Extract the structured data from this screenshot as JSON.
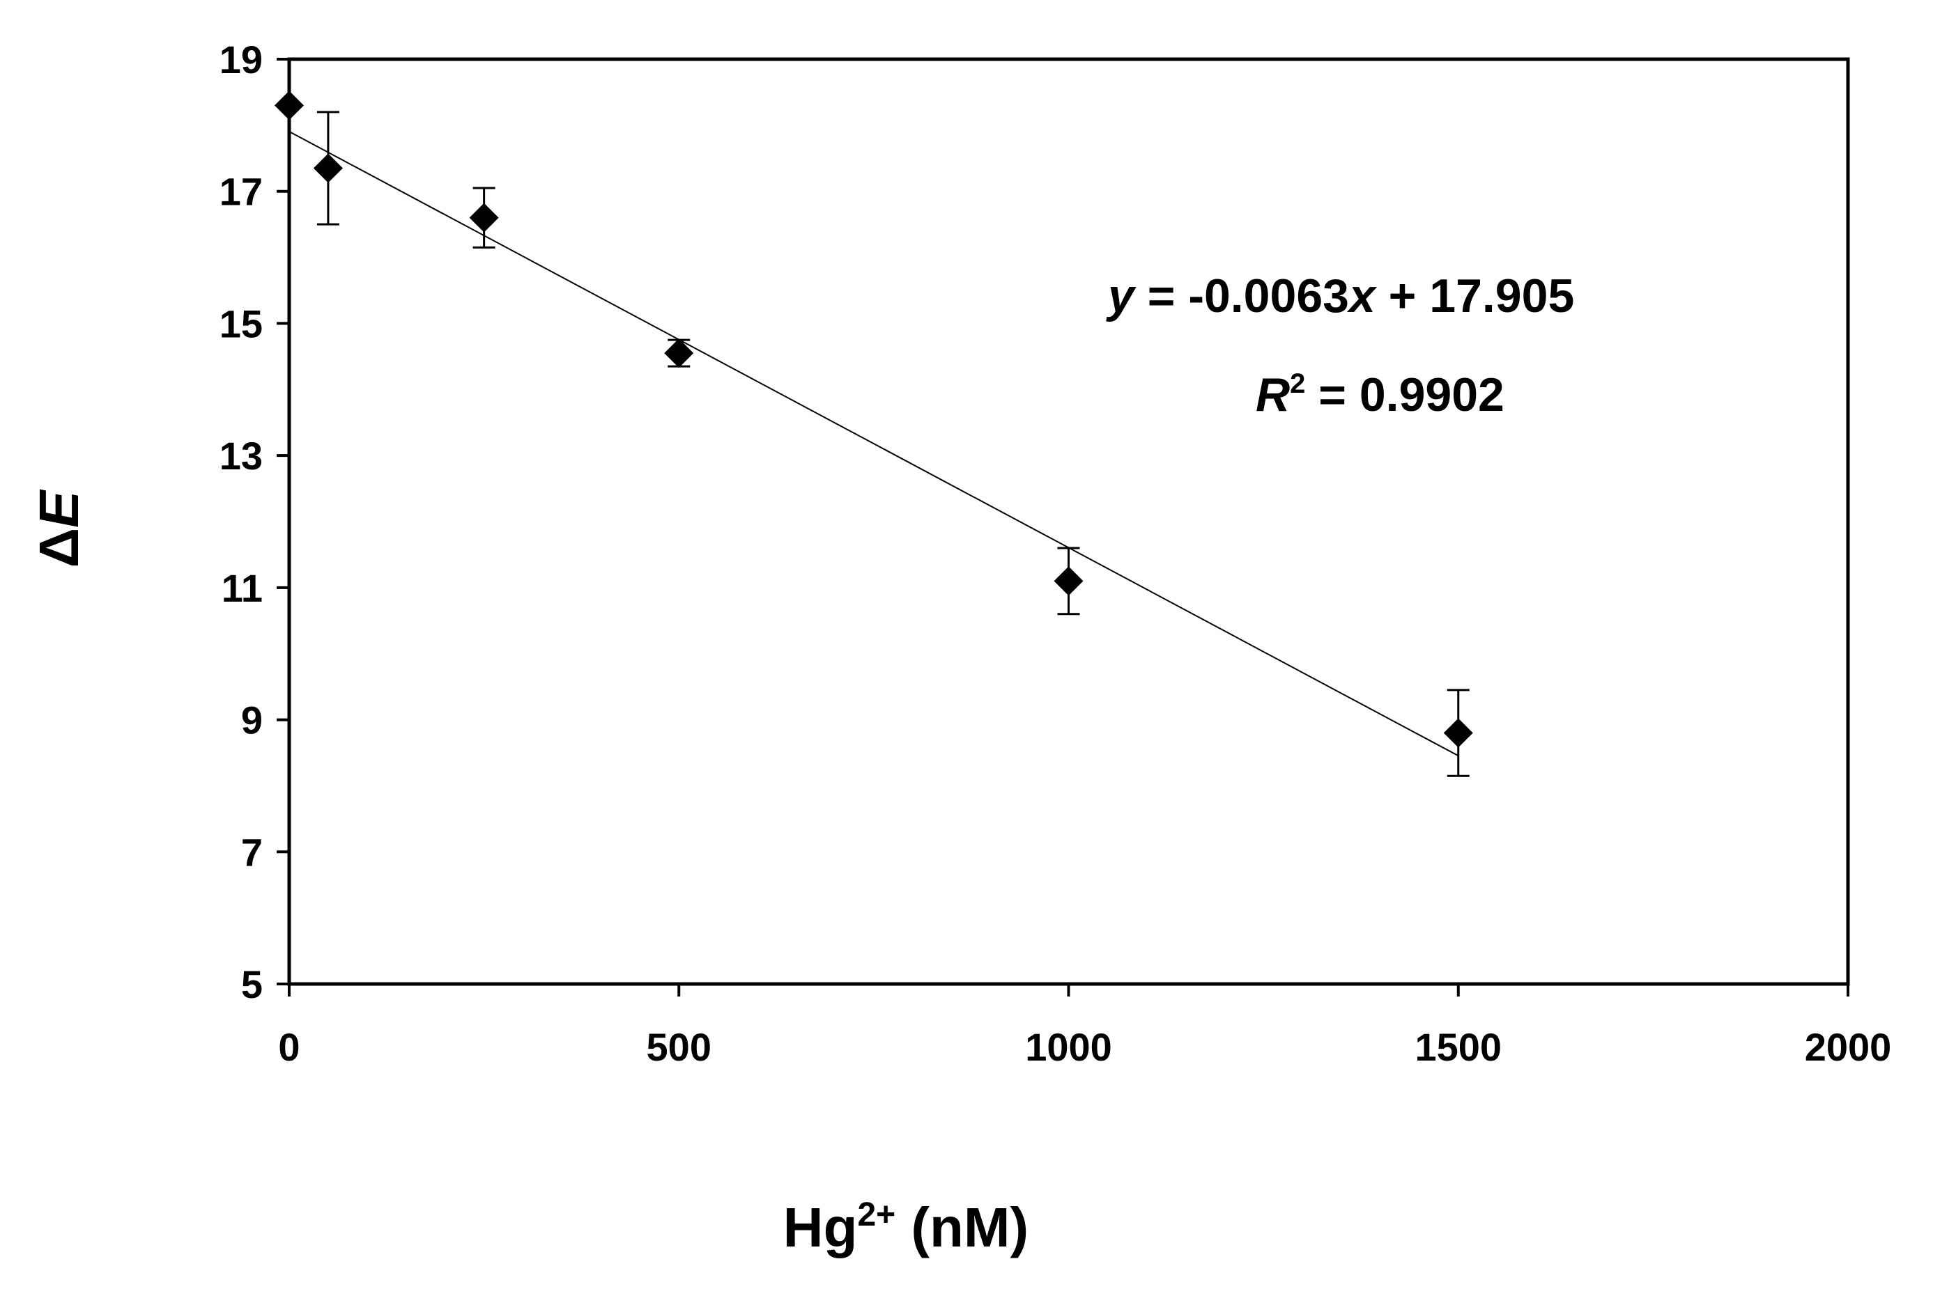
{
  "chart_data": {
    "type": "scatter",
    "xlabel_main": "Hg",
    "xlabel_sup": "2+",
    "xlabel_unit": " (nM)",
    "ylabel_symbol": "Δ",
    "ylabel_var": "E",
    "xlim": [
      0,
      2000
    ],
    "ylim": [
      5,
      19
    ],
    "xticks": [
      0,
      500,
      1000,
      1500,
      2000
    ],
    "yticks": [
      5,
      7,
      9,
      11,
      13,
      15,
      17,
      19
    ],
    "xtick_labels": [
      "0",
      "500",
      "1000",
      "1500",
      "2000"
    ],
    "ytick_labels": [
      "5",
      "7",
      "9",
      "11",
      "13",
      "15",
      "17",
      "19"
    ],
    "grid": false,
    "series": [
      {
        "marker": "diamond",
        "color": "#000000",
        "x": [
          0,
          50,
          250,
          500,
          1000,
          1500
        ],
        "y": [
          18.3,
          17.35,
          16.6,
          14.55,
          11.1,
          8.8
        ],
        "error": [
          0,
          0.85,
          0.45,
          0.2,
          0.5,
          0.65
        ]
      }
    ],
    "trendline": {
      "slope": -0.0063,
      "intercept": 17.905,
      "x_range": [
        0,
        1500
      ],
      "color": "#000000"
    },
    "annotation": {
      "eq_y": "y",
      "eq_equals": " =  -0.0063",
      "eq_x": "x",
      "eq_rest": " + 17.905",
      "r2_R": "R",
      "r2_sup": "2",
      "r2_rest": " = 0.9902"
    }
  }
}
